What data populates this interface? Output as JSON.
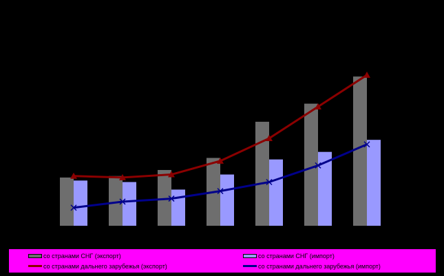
{
  "chart_data": {
    "type": "bar",
    "categories": [
      "",
      "",
      "",
      "",
      "",
      "",
      ""
    ],
    "ylim": [
      0,
      100
    ],
    "grid": false,
    "legend_position": "bottom",
    "series": [
      {
        "name": "со странами СНГ (экспорт)",
        "kind": "bar",
        "color": "#6e6e6e",
        "values": [
          32,
          33,
          37,
          45,
          69,
          81,
          99
        ]
      },
      {
        "name": "со странами СНГ (импорт)",
        "kind": "bar",
        "color": "#9999ff",
        "values": [
          30,
          29,
          24,
          34,
          44,
          49,
          57
        ]
      },
      {
        "name": "со странами дальнего зарубежья (экспорт)",
        "kind": "line",
        "marker": "triangle",
        "color": "#8b0000",
        "values": [
          33,
          32,
          34,
          43,
          58,
          79,
          100
        ]
      },
      {
        "name": "со странами дальнего зарубежья (импорт)",
        "kind": "line",
        "marker": "x",
        "color": "#00008b",
        "values": [
          12,
          16,
          18,
          23,
          29,
          40,
          54
        ]
      }
    ]
  },
  "legend": {
    "items": [
      "со странами СНГ (экспорт)",
      "со странами СНГ (импорт)",
      "со странами дальнего зарубежья (экспорт)",
      "со странами дальнего зарубежья (импорт)"
    ]
  }
}
